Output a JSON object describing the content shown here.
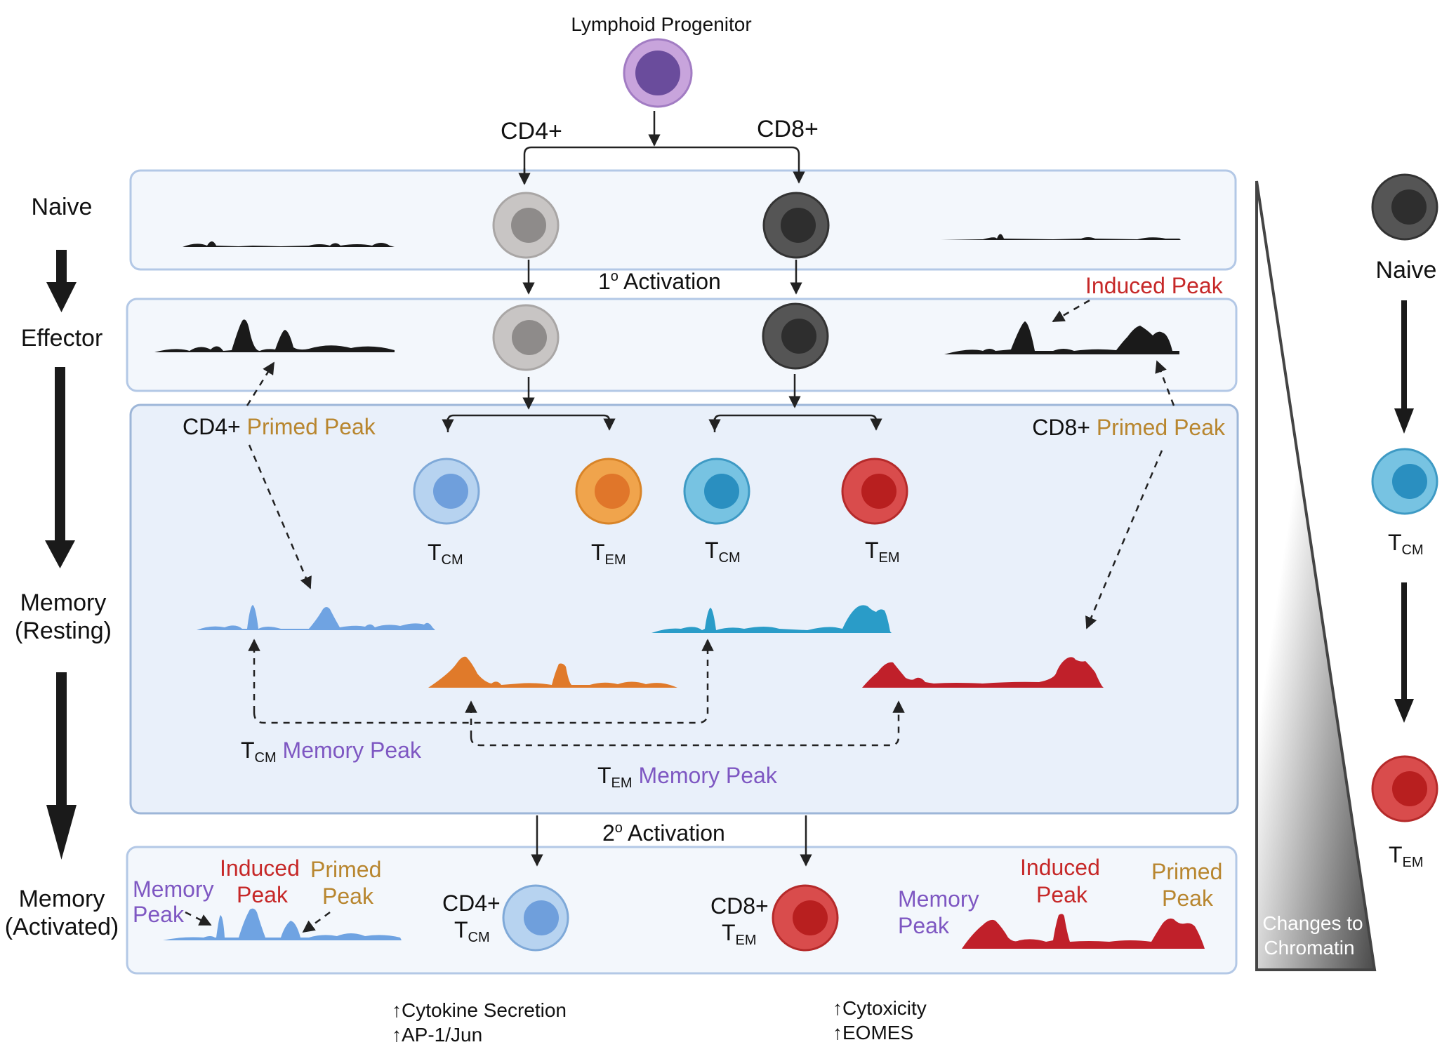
{
  "progenitor": {
    "label": "Lymphoid Progenitor"
  },
  "lineages": {
    "cd4": "CD4+",
    "cd8": "CD8+"
  },
  "stages": {
    "naive": "Naive",
    "effector": "Effector",
    "memory_resting_1": "Memory",
    "memory_resting_2": "(Resting)",
    "memory_activated_1": "Memory",
    "memory_activated_2": "(Activated)"
  },
  "activation": {
    "primary_sup": "1",
    "primary_deg": "o",
    "primary_text": " Activation",
    "secondary_sup": "2",
    "secondary_deg": "o",
    "secondary_text": " Activation"
  },
  "subsets": {
    "t": "T",
    "cm": "CM",
    "em": "EM"
  },
  "peaks": {
    "induced_peak": "Induced Peak",
    "cd4_primed_prefix": "CD4+ ",
    "cd8_primed_prefix": "CD8+ ",
    "primed_peak": "Primed Peak",
    "memory_peak": " Memory Peak",
    "memory": "Memory",
    "peak": "Peak",
    "induced": "Induced",
    "primed": "Primed"
  },
  "activated": {
    "cd4": "CD4+",
    "cd8": "CD8+"
  },
  "functions": {
    "cd4_1": "↑Cytokine Secretion",
    "cd4_2": "↑AP-1/Jun",
    "cd8_1": "↑Cytoxicity",
    "cd8_2": "↑EOMES"
  },
  "legend": {
    "naive": "Naive",
    "gradient_1": "Changes to",
    "gradient_2": "Chromatin"
  },
  "colors": {
    "progenitor": "#6a4c9c",
    "cd4_naive": "#c8c5c4",
    "cd8_naive": "#555555",
    "cd4_tcm": "#7aa7e0",
    "cd4_tem": "#ee9640",
    "cd8_tcm": "#3aa3d0",
    "cd8_tem": "#d33b3b",
    "induced": "#c62828",
    "primed": "#b8862f",
    "memory": "#7e57c2"
  }
}
